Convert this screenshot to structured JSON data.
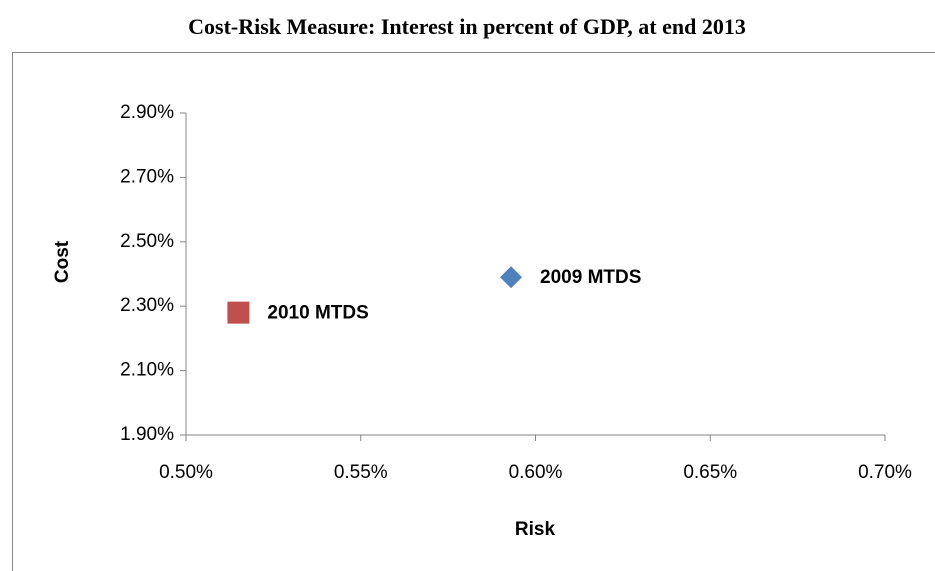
{
  "chart_data": {
    "type": "scatter",
    "title": "Cost-Risk Measure: Interest in percent of GDP, at end 2013",
    "x_label": "Risk",
    "y_label": "Cost",
    "series": [
      {
        "name": "2009 MTDS",
        "color": "#4f81bd",
        "marker": "diamond",
        "x": [
          0.593
        ],
        "values": [
          2.39
        ]
      },
      {
        "name": "2010 MTDS",
        "color": "#c0504d",
        "marker": "square",
        "x": [
          0.515
        ],
        "values": [
          2.28
        ]
      }
    ],
    "xlim": [
      0.5,
      0.7
    ],
    "xticks": [
      {
        "value": 0.5,
        "label": "0.50%"
      },
      {
        "value": 0.55,
        "label": "0.55%"
      },
      {
        "value": 0.6,
        "label": "0.60%"
      },
      {
        "value": 0.65,
        "label": "0.65%"
      },
      {
        "value": 0.7,
        "label": "0.70%"
      }
    ],
    "ylim": [
      1.9,
      2.9
    ],
    "yticks": [
      {
        "value": 1.9,
        "label": "1.90%"
      },
      {
        "value": 2.1,
        "label": "2.10%"
      },
      {
        "value": 2.3,
        "label": "2.30%"
      },
      {
        "value": 2.5,
        "label": "2.50%"
      },
      {
        "value": 2.7,
        "label": "2.70%"
      },
      {
        "value": 2.9,
        "label": "2.90%"
      }
    ],
    "grid": false
  }
}
